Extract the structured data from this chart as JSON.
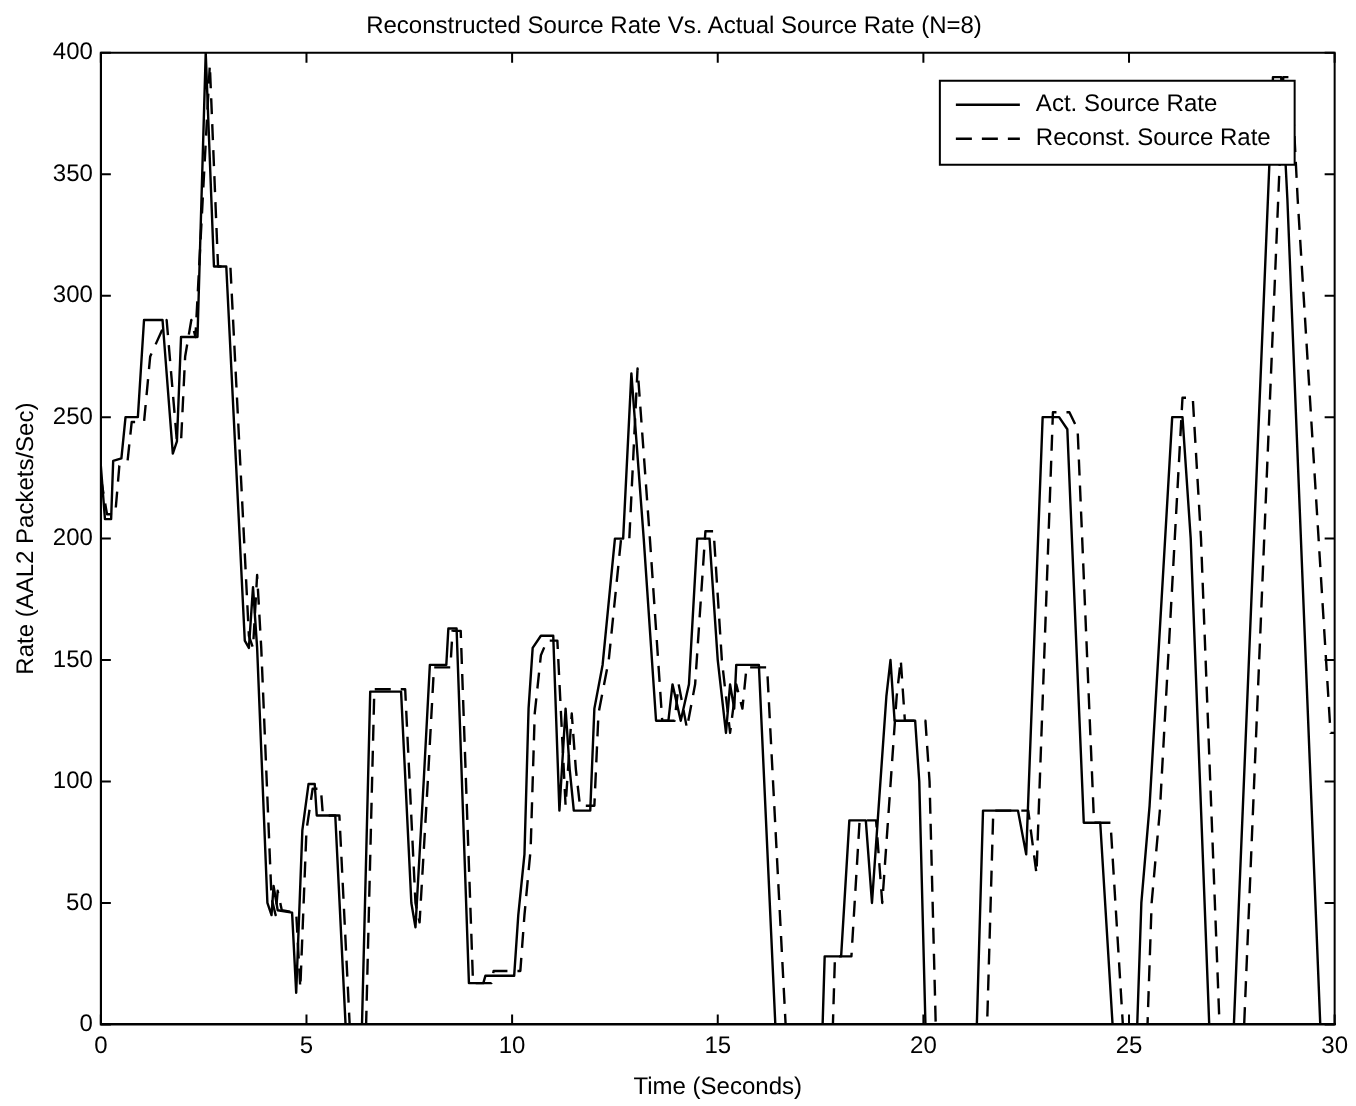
{
  "chart_data": {
    "type": "line",
    "title": "Reconstructed Source Rate Vs. Actual Source Rate (N=8)",
    "xlabel": "Time (Seconds)",
    "ylabel": "Rate (AAL2 Packets/Sec)",
    "xlim": [
      0,
      30
    ],
    "ylim": [
      0,
      400
    ],
    "xticks": [
      0,
      5,
      10,
      15,
      20,
      25,
      30
    ],
    "yticks": [
      0,
      50,
      100,
      150,
      200,
      250,
      300,
      350,
      400
    ],
    "grid": false,
    "legend": "top right",
    "marker": "none",
    "series": [
      {
        "name": "Act. Source Rate",
        "color": "#000000",
        "line_style": "solid",
        "x": [
          0,
          0.1,
          0.25,
          0.3,
          0.5,
          0.6,
          0.9,
          1.05,
          1.5,
          1.75,
          1.85,
          1.95,
          2.35,
          2.55,
          2.75,
          3.05,
          3.5,
          3.6,
          3.7,
          3.8,
          4.05,
          4.15,
          4.2,
          4.3,
          4.65,
          4.75,
          4.9,
          5.05,
          5.2,
          5.25,
          5.7,
          5.95,
          6.35,
          6.55,
          7.3,
          7.55,
          7.65,
          7.85,
          8.0,
          8.4,
          8.45,
          8.65,
          8.95,
          9.3,
          9.35,
          10.05,
          10.15,
          10.3,
          10.4,
          10.5,
          10.7,
          11.0,
          11.15,
          11.3,
          11.4,
          11.5,
          11.9,
          12.0,
          12.2,
          12.5,
          12.7,
          12.9,
          13.2,
          13.5,
          13.8,
          13.9,
          14.1,
          14.3,
          14.5,
          14.8,
          15.0,
          15.2,
          15.3,
          15.4,
          15.45,
          16.0,
          16.4,
          17.55,
          17.6,
          18.0,
          18.2,
          18.6,
          18.75,
          19.1,
          19.2,
          19.3,
          19.8,
          19.9,
          20.05,
          21.3,
          21.45,
          22.3,
          22.5,
          22.9,
          23.3,
          23.5,
          23.9,
          24.3,
          24.6,
          25.2,
          25.3,
          25.5,
          26.05,
          26.3,
          26.5,
          26.95,
          27.55,
          28.5,
          28.7,
          28.85,
          29.65,
          30
        ],
        "values": [
          230,
          208,
          208,
          232,
          233,
          250,
          250,
          290,
          290,
          235,
          240,
          283,
          283,
          400,
          312,
          312,
          158,
          155,
          180,
          155,
          50,
          45,
          57,
          47,
          46,
          13,
          80,
          99,
          99,
          86,
          86,
          0,
          0,
          137,
          137,
          50,
          40,
          100,
          148,
          148,
          163,
          163,
          17,
          17,
          20,
          20,
          45,
          70,
          130,
          155,
          160,
          160,
          88,
          130,
          105,
          88,
          88,
          130,
          148,
          200,
          200,
          268,
          200,
          125,
          125,
          140,
          125,
          140,
          200,
          200,
          150,
          120,
          140,
          130,
          148,
          148,
          0,
          0,
          28,
          28,
          84,
          84,
          50,
          135,
          150,
          125,
          125,
          100,
          0,
          0,
          88,
          88,
          70,
          250,
          250,
          245,
          83,
          83,
          0,
          0,
          50,
          90,
          250,
          250,
          200,
          0,
          0,
          390,
          390,
          340,
          0,
          0
        ]
      },
      {
        "name": "Reconst. Source Rate",
        "color": "#000000",
        "line_style": "dashed",
        "x": [
          0,
          0.15,
          0.35,
          0.45,
          0.65,
          0.75,
          1.05,
          1.2,
          1.6,
          1.85,
          1.95,
          2.05,
          2.2,
          2.3,
          2.65,
          2.85,
          3.15,
          3.6,
          3.7,
          3.8,
          3.9,
          4.15,
          4.25,
          4.3,
          4.4,
          4.75,
          4.85,
          5.0,
          5.15,
          5.35,
          5.4,
          5.8,
          6.05,
          6.45,
          6.65,
          7.4,
          7.65,
          7.75,
          7.95,
          8.1,
          8.5,
          8.55,
          8.75,
          9.05,
          9.5,
          9.55,
          10.2,
          10.3,
          10.45,
          10.55,
          10.7,
          10.85,
          11.1,
          11.3,
          11.45,
          11.55,
          11.65,
          12.0,
          12.1,
          12.35,
          12.65,
          12.85,
          13.05,
          13.35,
          13.65,
          13.95,
          14.05,
          14.25,
          14.45,
          14.7,
          14.9,
          15.1,
          15.3,
          15.45,
          15.6,
          15.7,
          16.2,
          16.65,
          17.8,
          17.85,
          18.25,
          18.45,
          18.85,
          19.0,
          19.35,
          19.45,
          19.55,
          20.05,
          20.15,
          20.3,
          21.55,
          21.7,
          22.55,
          22.75,
          23.15,
          23.55,
          23.75,
          24.15,
          24.55,
          24.85,
          25.45,
          25.55,
          25.75,
          26.3,
          26.55,
          26.75,
          27.2,
          27.8,
          28.75,
          28.95,
          29.1,
          29.9,
          30
        ],
        "values": [
          225,
          210,
          210,
          230,
          232,
          248,
          248,
          275,
          290,
          240,
          240,
          275,
          290,
          283,
          395,
          312,
          312,
          160,
          155,
          185,
          155,
          52,
          45,
          55,
          47,
          46,
          15,
          80,
          97,
          97,
          86,
          86,
          0,
          0,
          138,
          138,
          50,
          42,
          100,
          147,
          147,
          162,
          162,
          17,
          17,
          22,
          22,
          45,
          72,
          128,
          152,
          158,
          158,
          90,
          128,
          105,
          90,
          90,
          128,
          150,
          200,
          200,
          270,
          200,
          125,
          125,
          140,
          122,
          140,
          203,
          203,
          150,
          120,
          140,
          130,
          147,
          147,
          0,
          0,
          28,
          28,
          84,
          84,
          50,
          135,
          150,
          125,
          125,
          100,
          0,
          0,
          88,
          88,
          62,
          252,
          252,
          245,
          83,
          83,
          0,
          0,
          50,
          88,
          258,
          258,
          200,
          0,
          0,
          390,
          390,
          340,
          120,
          120
        ]
      }
    ]
  }
}
